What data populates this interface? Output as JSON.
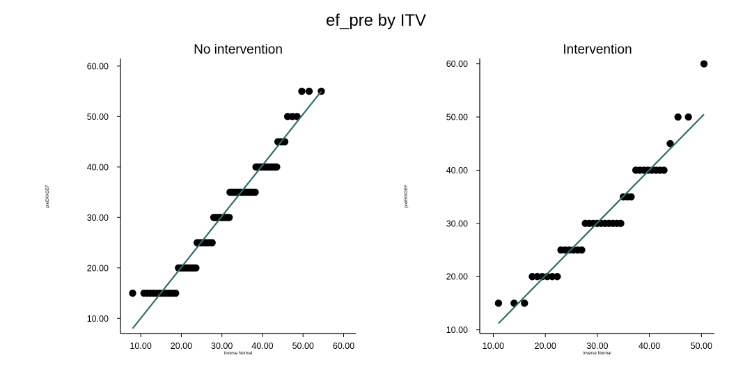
{
  "chart_data": {
    "title": "ef_pre by ITV",
    "panels": [
      {
        "type": "scatter",
        "title": "No intervention",
        "xlabel": "Inverse Normal",
        "ylabel": "preEKKOEF",
        "xlim": [
          5,
          63
        ],
        "ylim": [
          7,
          61.5
        ],
        "x_ticks": [
          "10.00",
          "20.00",
          "30.00",
          "40.00",
          "50.00",
          "60.00"
        ],
        "y_ticks": [
          "10.00",
          "20.00",
          "30.00",
          "40.00",
          "50.00",
          "60.00"
        ],
        "fit_line": {
          "x": [
            8,
            54.5
          ],
          "y": [
            8,
            55
          ]
        },
        "series": [
          {
            "groups": [
              {
                "y": 15,
                "x_from": 8,
                "x_to": 8,
                "n": 1
              },
              {
                "y": 15,
                "x_from": 10.8,
                "x_to": 18.6,
                "n": 11
              },
              {
                "y": 20,
                "x_from": 19.3,
                "x_to": 23.6,
                "n": 12
              },
              {
                "y": 25,
                "x_from": 23.9,
                "x_to": 27.6,
                "n": 10
              },
              {
                "y": 30,
                "x_from": 28,
                "x_to": 31.8,
                "n": 10
              },
              {
                "y": 35,
                "x_from": 32,
                "x_to": 38.2,
                "n": 16
              },
              {
                "y": 40,
                "x_from": 38.4,
                "x_to": 43.5,
                "n": 14
              },
              {
                "y": 45,
                "x_from": 43.8,
                "x_to": 45.5,
                "n": 4
              },
              {
                "y": 50,
                "x_from": 46.2,
                "x_to": 48.5,
                "n": 3
              },
              {
                "y": 55,
                "x_from": 49.7,
                "x_to": 51.5,
                "n": 2
              },
              {
                "y": 55,
                "x_from": 54.5,
                "x_to": 54.5,
                "n": 1
              }
            ]
          }
        ],
        "line_color": "#2f6b6b",
        "point_color": "#000000"
      },
      {
        "type": "scatter",
        "title": "Intervention",
        "xlabel": "Inverse Normal",
        "ylabel": "preEKKOEF",
        "xlim": [
          7.4,
          52.5
        ],
        "ylim": [
          9.3,
          61
        ],
        "x_ticks": [
          "10.00",
          "20.00",
          "30.00",
          "40.00",
          "50.00"
        ],
        "y_ticks": [
          "10.00",
          "20.00",
          "30.00",
          "40.00",
          "50.00",
          "60.00"
        ],
        "fit_line": {
          "x": [
            11,
            50.5
          ],
          "y": [
            11.2,
            50.5
          ]
        },
        "series": [
          {
            "groups": [
              {
                "y": 15,
                "x_from": 11,
                "x_to": 11,
                "n": 1
              },
              {
                "y": 15,
                "x_from": 14,
                "x_to": 14,
                "n": 1
              },
              {
                "y": 15,
                "x_from": 16,
                "x_to": 16,
                "n": 1
              },
              {
                "y": 20,
                "x_from": 17.5,
                "x_to": 22.3,
                "n": 6
              },
              {
                "y": 25,
                "x_from": 23,
                "x_to": 27,
                "n": 6
              },
              {
                "y": 30,
                "x_from": 27.7,
                "x_to": 34.5,
                "n": 10
              },
              {
                "y": 35,
                "x_from": 35,
                "x_to": 36.5,
                "n": 3
              },
              {
                "y": 40,
                "x_from": 37.4,
                "x_to": 42.8,
                "n": 8
              },
              {
                "y": 45,
                "x_from": 44,
                "x_to": 44,
                "n": 1
              },
              {
                "y": 50,
                "x_from": 45.5,
                "x_to": 45.5,
                "n": 1
              },
              {
                "y": 50,
                "x_from": 47.5,
                "x_to": 47.5,
                "n": 1
              },
              {
                "y": 60,
                "x_from": 50.5,
                "x_to": 50.5,
                "n": 1
              }
            ]
          }
        ],
        "line_color": "#2f6b6b",
        "point_color": "#000000"
      }
    ]
  }
}
